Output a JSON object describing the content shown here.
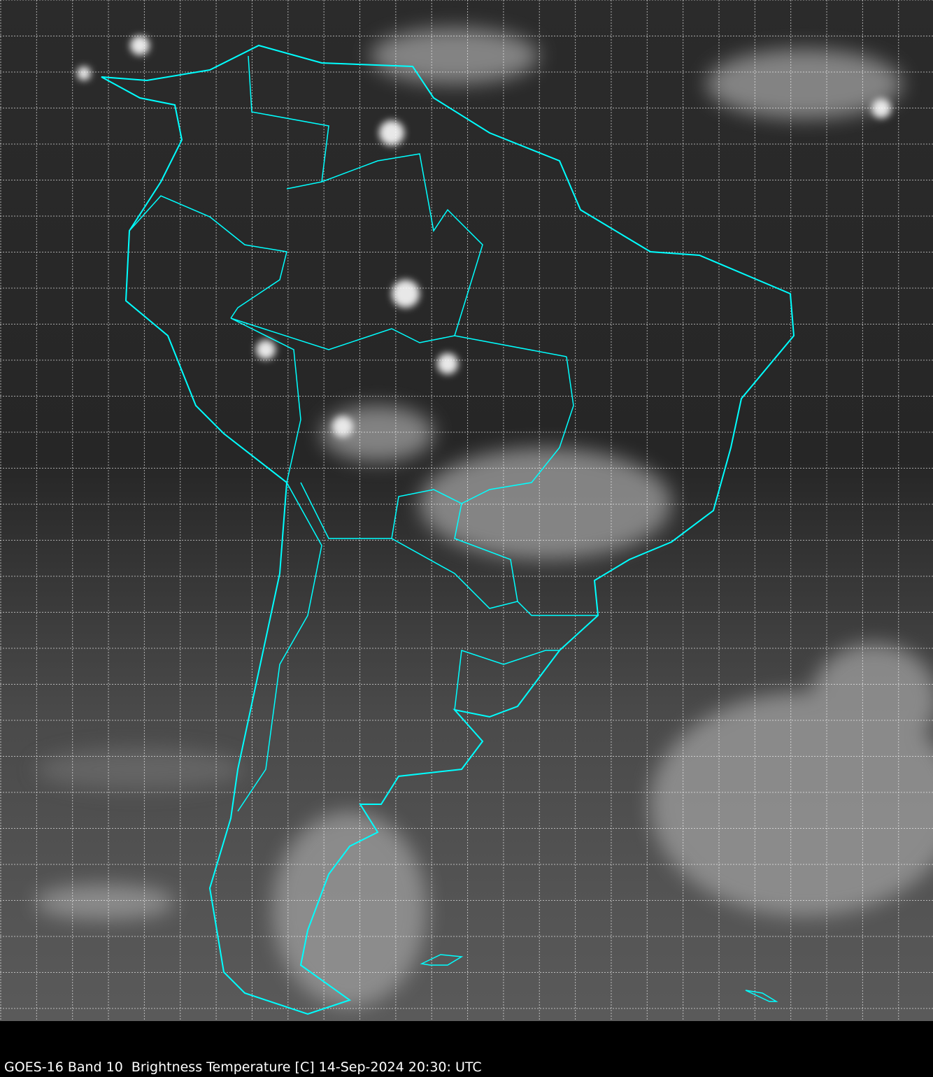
{
  "caption": "GOES-16 Band 10  Brightness Temperature [C] 14-Sep-2024 20:30: UTC",
  "map": {
    "satellite": "GOES-16",
    "band": "Band 10",
    "variable": "Brightness Temperature [C]",
    "coastline_color": "#00ffff",
    "grid_color": "#ffffff",
    "background_color": "#000000"
  }
}
